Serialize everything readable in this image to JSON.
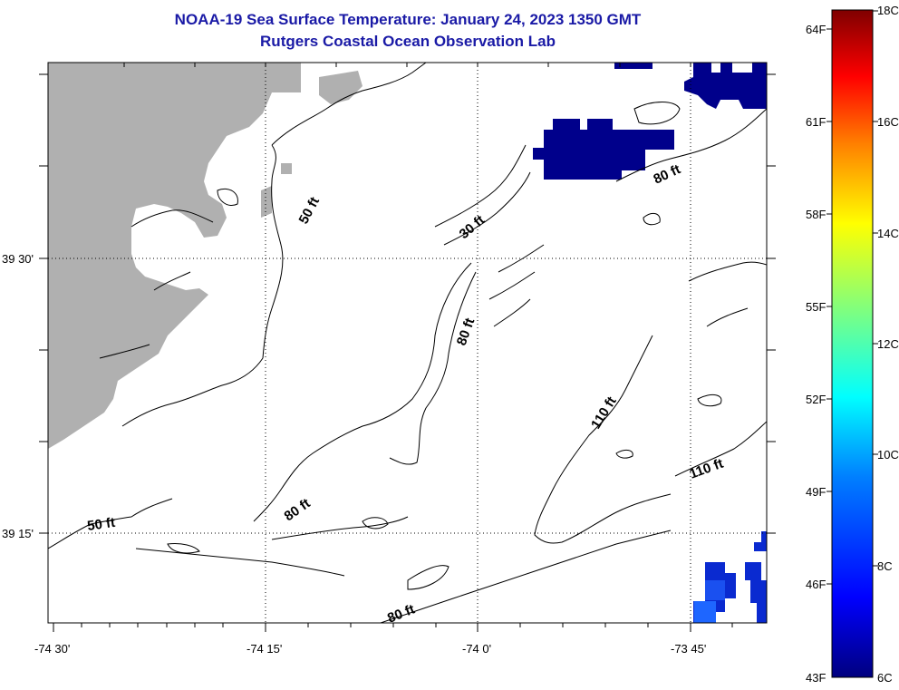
{
  "title": {
    "line1": "NOAA-19 Sea Surface Temperature:  January 24, 2023 1350 GMT",
    "line2": "Rutgers Coastal Ocean Observation Lab"
  },
  "axes": {
    "x_ticks": [
      "-74 30'",
      "-74 15'",
      "-74 0'",
      "-73 45'"
    ],
    "y_ticks": [
      "39 30'",
      "39 15'"
    ]
  },
  "contours": {
    "labels": [
      "50 ft",
      "30 ft",
      "80 ft",
      "80 ft",
      "110 ft",
      "110 ft",
      "50 ft",
      "80 ft",
      "80 ft"
    ]
  },
  "colorbar": {
    "f_labels": [
      "64F",
      "61F",
      "58F",
      "55F",
      "52F",
      "49F",
      "46F",
      "43F"
    ],
    "c_labels": [
      "18C",
      "16C",
      "14C",
      "12C",
      "10C",
      "8C",
      "6C"
    ],
    "range_c": [
      6,
      18
    ],
    "colors": [
      "#00007f",
      "#0000ff",
      "#007fff",
      "#00ffff",
      "#7fff7f",
      "#ffff00",
      "#ff7f00",
      "#ff0000",
      "#7f0000"
    ]
  },
  "colors": {
    "land": "#b0b0b0",
    "cold_patch": "#00008b",
    "title": "#1a1aa6"
  }
}
